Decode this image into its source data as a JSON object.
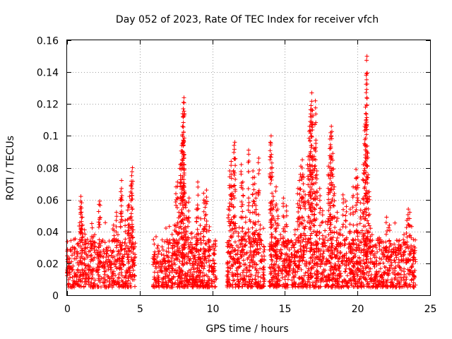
{
  "chart_data": {
    "type": "scatter",
    "title": "Day 052 of 2023, Rate Of TEC Index for receiver vfch",
    "xlabel": "GPS time / hours",
    "ylabel": "ROTI / TECUs",
    "xlim": [
      0,
      25
    ],
    "ylim": [
      0,
      0.16
    ],
    "xticks": [
      0,
      5,
      10,
      15,
      20,
      25
    ],
    "xtick_labels": [
      "0",
      "5",
      "10",
      "15",
      "20",
      "25"
    ],
    "yticks": [
      0,
      0.02,
      0.04,
      0.06,
      0.08,
      0.1,
      0.12,
      0.14,
      0.16
    ],
    "ytick_labels": [
      "0",
      "0.02",
      "0.04",
      "0.06",
      "0.08",
      "0.1",
      "0.12",
      "0.14",
      "0.16"
    ],
    "grid": true,
    "marker": "+",
    "color": "#ff0000",
    "gaps_hours": [
      [
        4.7,
        5.9
      ],
      [
        10.3,
        11.0
      ],
      [
        13.6,
        13.9
      ]
    ],
    "series": [
      {
        "name": "ROTI",
        "points": [
          [
            0.0,
            0.014
          ],
          [
            0.1,
            0.018
          ],
          [
            0.2,
            0.011
          ],
          [
            0.3,
            0.021
          ],
          [
            0.4,
            0.016
          ],
          [
            0.5,
            0.027
          ],
          [
            0.6,
            0.013
          ],
          [
            0.7,
            0.032
          ],
          [
            0.8,
            0.019
          ],
          [
            0.9,
            0.054
          ],
          [
            0.95,
            0.062
          ],
          [
            1.0,
            0.058
          ],
          [
            1.05,
            0.049
          ],
          [
            1.1,
            0.023
          ],
          [
            1.2,
            0.041
          ],
          [
            1.3,
            0.017
          ],
          [
            1.4,
            0.035
          ],
          [
            1.5,
            0.012
          ],
          [
            1.6,
            0.028
          ],
          [
            1.7,
            0.045
          ],
          [
            1.8,
            0.022
          ],
          [
            1.9,
            0.038
          ],
          [
            2.0,
            0.015
          ],
          [
            2.1,
            0.026
          ],
          [
            2.2,
            0.057
          ],
          [
            2.25,
            0.059
          ],
          [
            2.3,
            0.031
          ],
          [
            2.4,
            0.018
          ],
          [
            2.5,
            0.024
          ],
          [
            2.6,
            0.013
          ],
          [
            2.7,
            0.029
          ],
          [
            2.8,
            0.019
          ],
          [
            2.9,
            0.034
          ],
          [
            3.0,
            0.016
          ],
          [
            3.1,
            0.027
          ],
          [
            3.2,
            0.044
          ],
          [
            3.3,
            0.021
          ],
          [
            3.4,
            0.052
          ],
          [
            3.5,
            0.038
          ],
          [
            3.6,
            0.026
          ],
          [
            3.7,
            0.065
          ],
          [
            3.75,
            0.072
          ],
          [
            3.8,
            0.033
          ],
          [
            3.9,
            0.019
          ],
          [
            4.0,
            0.047
          ],
          [
            4.1,
            0.014
          ],
          [
            4.2,
            0.056
          ],
          [
            4.3,
            0.062
          ],
          [
            4.4,
            0.069
          ],
          [
            4.45,
            0.075
          ],
          [
            4.5,
            0.08
          ],
          [
            4.55,
            0.041
          ],
          [
            4.6,
            0.022
          ],
          [
            4.65,
            0.012
          ],
          [
            6.0,
            0.032
          ],
          [
            6.1,
            0.018
          ],
          [
            6.2,
            0.024
          ],
          [
            6.3,
            0.011
          ],
          [
            6.5,
            0.015
          ],
          [
            6.6,
            0.021
          ],
          [
            6.8,
            0.017
          ],
          [
            7.0,
            0.027
          ],
          [
            7.2,
            0.019
          ],
          [
            7.3,
            0.035
          ],
          [
            7.4,
            0.044
          ],
          [
            7.5,
            0.068
          ],
          [
            7.6,
            0.071
          ],
          [
            7.7,
            0.052
          ],
          [
            7.8,
            0.082
          ],
          [
            7.85,
            0.079
          ],
          [
            7.9,
            0.094
          ],
          [
            7.95,
            0.106
          ],
          [
            8.0,
            0.117
          ],
          [
            8.02,
            0.121
          ],
          [
            8.05,
            0.124
          ],
          [
            8.1,
            0.064
          ],
          [
            8.2,
            0.058
          ],
          [
            8.3,
            0.047
          ],
          [
            8.4,
            0.061
          ],
          [
            8.5,
            0.033
          ],
          [
            8.6,
            0.039
          ],
          [
            8.8,
            0.025
          ],
          [
            8.9,
            0.054
          ],
          [
            9.0,
            0.071
          ],
          [
            9.1,
            0.019
          ],
          [
            9.2,
            0.048
          ],
          [
            9.4,
            0.064
          ],
          [
            9.5,
            0.059
          ],
          [
            9.6,
            0.066
          ],
          [
            9.7,
            0.029
          ],
          [
            9.8,
            0.043
          ],
          [
            10.0,
            0.017
          ],
          [
            10.1,
            0.022
          ],
          [
            10.2,
            0.012
          ],
          [
            11.1,
            0.054
          ],
          [
            11.2,
            0.078
          ],
          [
            11.3,
            0.084
          ],
          [
            11.35,
            0.068
          ],
          [
            11.5,
            0.094
          ],
          [
            11.55,
            0.096
          ],
          [
            11.6,
            0.045
          ],
          [
            11.7,
            0.031
          ],
          [
            11.8,
            0.039
          ],
          [
            12.0,
            0.082
          ],
          [
            12.1,
            0.071
          ],
          [
            12.3,
            0.049
          ],
          [
            12.5,
            0.091
          ],
          [
            12.6,
            0.052
          ],
          [
            12.8,
            0.078
          ],
          [
            12.9,
            0.074
          ],
          [
            13.0,
            0.064
          ],
          [
            13.1,
            0.033
          ],
          [
            13.2,
            0.086
          ],
          [
            13.3,
            0.044
          ],
          [
            13.4,
            0.021
          ],
          [
            13.5,
            0.017
          ],
          [
            14.0,
            0.096
          ],
          [
            14.05,
            0.1
          ],
          [
            14.1,
            0.083
          ],
          [
            14.2,
            0.062
          ],
          [
            14.3,
            0.047
          ],
          [
            14.4,
            0.068
          ],
          [
            14.5,
            0.054
          ],
          [
            14.7,
            0.038
          ],
          [
            14.9,
            0.061
          ],
          [
            15.0,
            0.043
          ],
          [
            15.1,
            0.056
          ],
          [
            15.3,
            0.033
          ],
          [
            15.5,
            0.024
          ],
          [
            15.7,
            0.041
          ],
          [
            15.9,
            0.067
          ],
          [
            16.0,
            0.072
          ],
          [
            16.1,
            0.081
          ],
          [
            16.2,
            0.085
          ],
          [
            16.3,
            0.074
          ],
          [
            16.4,
            0.063
          ],
          [
            16.6,
            0.087
          ],
          [
            16.7,
            0.106
          ],
          [
            16.75,
            0.112
          ],
          [
            16.8,
            0.119
          ],
          [
            16.85,
            0.127
          ],
          [
            16.9,
            0.116
          ],
          [
            17.0,
            0.092
          ],
          [
            17.1,
            0.122
          ],
          [
            17.2,
            0.078
          ],
          [
            17.4,
            0.067
          ],
          [
            17.6,
            0.053
          ],
          [
            17.8,
            0.046
          ],
          [
            18.0,
            0.081
          ],
          [
            18.1,
            0.098
          ],
          [
            18.15,
            0.102
          ],
          [
            18.2,
            0.106
          ],
          [
            18.3,
            0.089
          ],
          [
            18.4,
            0.068
          ],
          [
            18.6,
            0.052
          ],
          [
            18.8,
            0.041
          ],
          [
            19.0,
            0.063
          ],
          [
            19.2,
            0.059
          ],
          [
            19.5,
            0.054
          ],
          [
            19.7,
            0.068
          ],
          [
            19.9,
            0.079
          ],
          [
            20.0,
            0.074
          ],
          [
            20.2,
            0.058
          ],
          [
            20.4,
            0.082
          ],
          [
            20.5,
            0.106
          ],
          [
            20.55,
            0.118
          ],
          [
            20.6,
            0.138
          ],
          [
            20.65,
            0.15
          ],
          [
            20.7,
            0.089
          ],
          [
            20.8,
            0.065
          ],
          [
            20.9,
            0.042
          ],
          [
            21.0,
            0.038
          ],
          [
            21.2,
            0.031
          ],
          [
            21.5,
            0.036
          ],
          [
            21.8,
            0.024
          ],
          [
            22.0,
            0.049
          ],
          [
            22.2,
            0.044
          ],
          [
            22.5,
            0.027
          ],
          [
            22.8,
            0.034
          ],
          [
            23.0,
            0.029
          ],
          [
            23.2,
            0.038
          ],
          [
            23.4,
            0.047
          ],
          [
            23.5,
            0.054
          ],
          [
            23.6,
            0.052
          ],
          [
            23.7,
            0.036
          ],
          [
            23.9,
            0.026
          ],
          [
            24.0,
            0.021
          ]
        ]
      }
    ]
  }
}
